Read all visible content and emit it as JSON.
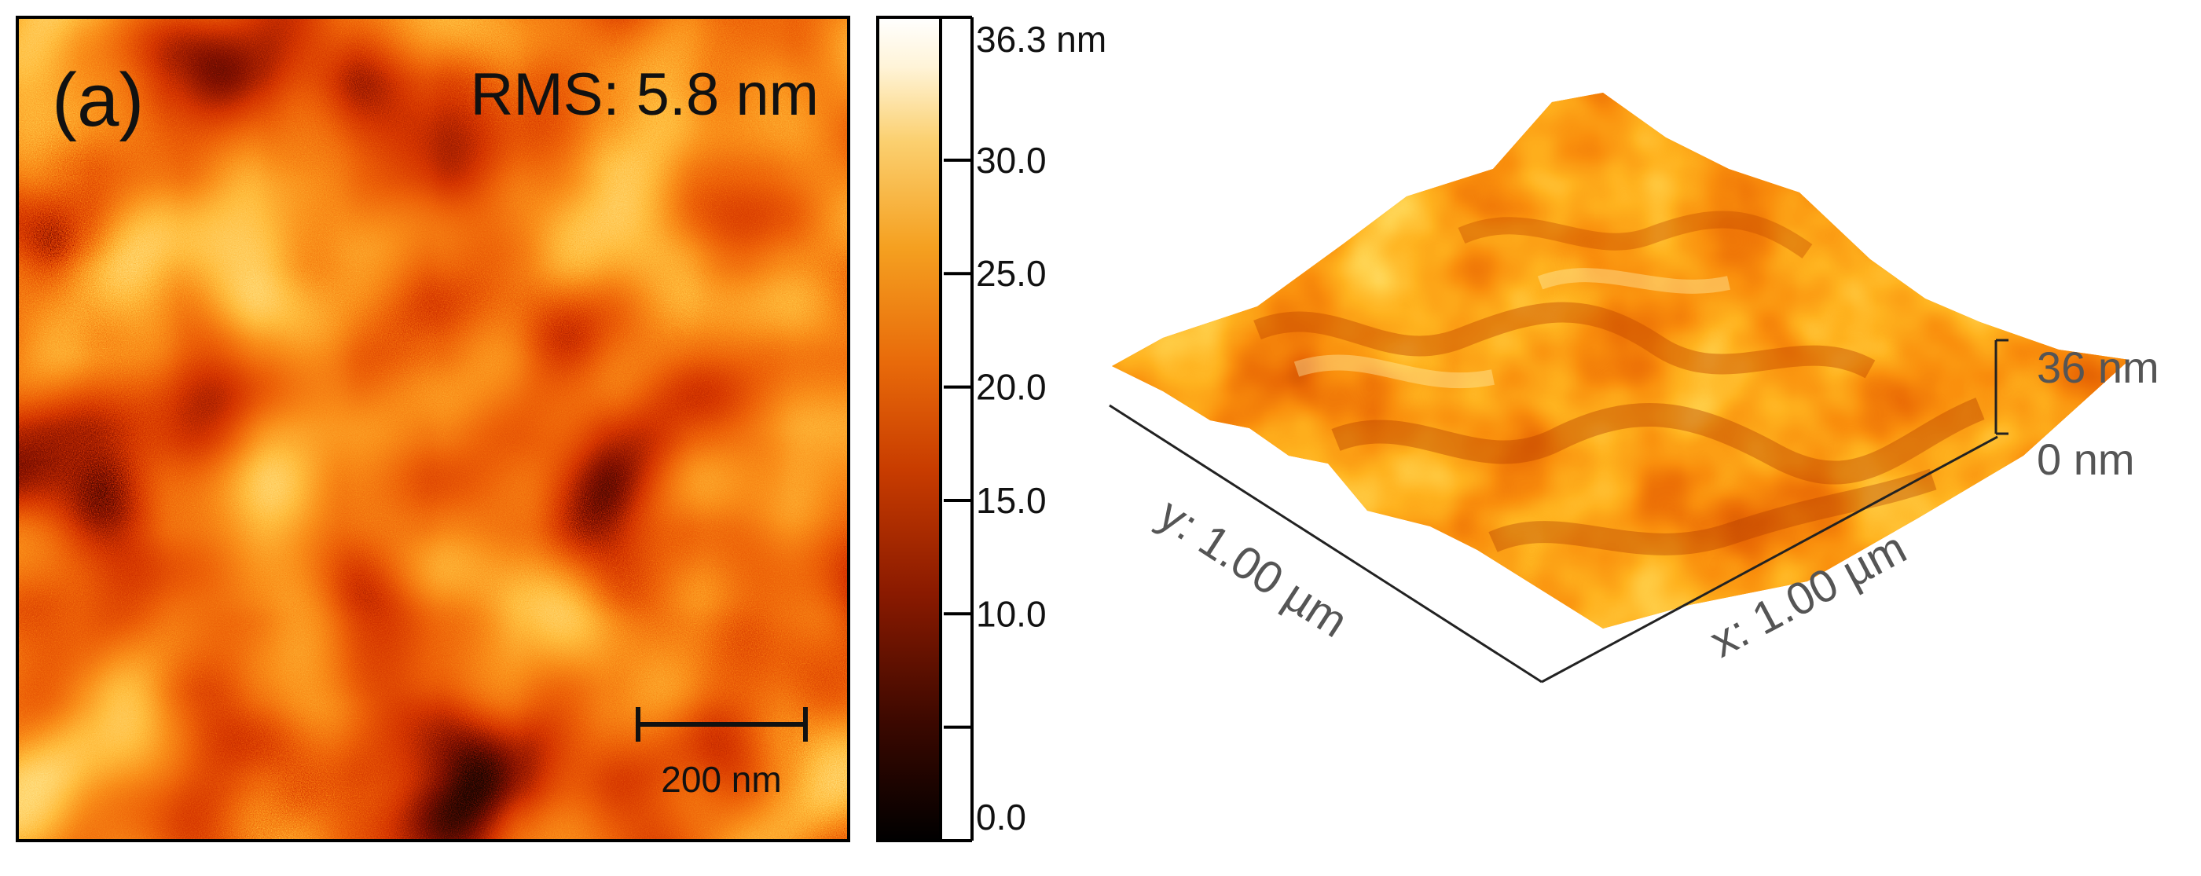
{
  "figure": {
    "panel_label": "(a)",
    "rms_label": "RMS: 5.8 nm",
    "scale_bar_label": "200 nm",
    "colorbar": {
      "ticks": [
        {
          "value": 36.3,
          "label": "36.3 nm"
        },
        {
          "value": 30.0,
          "label": "30.0"
        },
        {
          "value": 25.0,
          "label": "25.0"
        },
        {
          "value": 20.0,
          "label": "20.0"
        },
        {
          "value": 15.0,
          "label": "15.0"
        },
        {
          "value": 10.0,
          "label": "10.0"
        },
        {
          "value": 0.0,
          "label": "0.0"
        }
      ],
      "minor_ticks": [
        5.0
      ],
      "min": 0.0,
      "max": 36.3,
      "colors": [
        "#000000",
        "#3a0800",
        "#8a1a00",
        "#c83c00",
        "#e86a0a",
        "#f5a020",
        "#fbd070",
        "#fff4d8",
        "#ffffff"
      ]
    },
    "surface3d": {
      "y_axis_label": "y: 1.00 µm",
      "x_axis_label": "x: 1.00 µm",
      "z_top_label": "36 nm",
      "z_bottom_label": "0 nm"
    }
  }
}
